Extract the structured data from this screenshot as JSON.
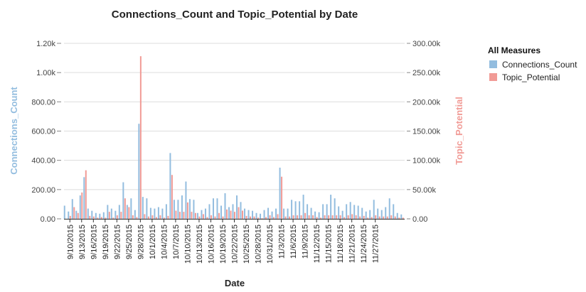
{
  "chart_data": {
    "type": "bar",
    "title": "Connections_Count and Topic_Potential by Date",
    "xlabel": "Date",
    "ylabel_left": "Connections_Count",
    "ylabel_right": "Topic_Potential",
    "ylim_left": [
      0,
      1200
    ],
    "ylim_right": [
      0,
      300000
    ],
    "yticks_left": [
      "0.00",
      "200.00",
      "400.00",
      "600.00",
      "800.00",
      "1.00k",
      "1.20k"
    ],
    "yticks_right": [
      "0.00",
      "50.00k",
      "100.00k",
      "150.00k",
      "200.00k",
      "250.00k",
      "300.00k"
    ],
    "grid": true,
    "legend": {
      "title": "All Measures",
      "position": "top-right"
    },
    "colors": {
      "connections": "#93bddf",
      "topic": "#f19b96"
    },
    "start_date": "2015-09-09",
    "x_tick_labels": [
      "9/10/2015",
      "9/13/2015",
      "9/16/2015",
      "9/19/2015",
      "9/22/2015",
      "9/25/2015",
      "9/28/2015",
      "10/1/2015",
      "10/4/2015",
      "10/7/2015",
      "10/10/2015",
      "10/13/2015",
      "10/16/2015",
      "10/19/2015",
      "10/22/2015",
      "10/25/2015",
      "10/28/2015",
      "10/31/2015",
      "11/3/2015",
      "11/6/2015",
      "11/9/2015",
      "11/12/2015",
      "11/15/2015",
      "11/18/2015",
      "11/21/2015",
      "11/24/2015",
      "11/27/2015"
    ],
    "series": [
      {
        "name": "Connections_Count",
        "values": [
          90,
          50,
          135,
          55,
          160,
          285,
          70,
          55,
          40,
          35,
          45,
          95,
          70,
          55,
          95,
          250,
          95,
          140,
          60,
          650,
          150,
          140,
          75,
          70,
          80,
          70,
          100,
          450,
          130,
          130,
          160,
          255,
          135,
          130,
          40,
          60,
          70,
          100,
          140,
          140,
          90,
          175,
          80,
          100,
          160,
          115,
          70,
          60,
          55,
          40,
          35,
          60,
          75,
          50,
          70,
          350,
          70,
          70,
          130,
          120,
          120,
          165,
          100,
          75,
          50,
          45,
          100,
          100,
          165,
          140,
          85,
          55,
          100,
          115,
          95,
          90,
          75,
          50,
          60,
          130,
          70,
          60,
          80,
          140,
          100,
          40,
          30
        ]
      },
      {
        "name": "Topic_Potential",
        "values": [
          0,
          5000,
          20000,
          10000,
          45000,
          83000,
          5000,
          4000,
          2000,
          3000,
          2000,
          12000,
          2000,
          6000,
          12000,
          35000,
          20000,
          6000,
          3000,
          278000,
          8000,
          4000,
          6000,
          3000,
          6000,
          2000,
          5000,
          75000,
          14000,
          12000,
          12000,
          28000,
          12000,
          10000,
          4000,
          8000,
          3000,
          6000,
          4000,
          10000,
          4000,
          16000,
          14000,
          12000,
          20000,
          14000,
          5000,
          4000,
          4000,
          2000,
          1000,
          3000,
          6000,
          3000,
          8000,
          72000,
          4000,
          4000,
          6000,
          6000,
          6000,
          10000,
          6000,
          6000,
          3000,
          2000,
          6000,
          6000,
          6000,
          6000,
          6000,
          3000,
          6000,
          8000,
          6000,
          4000,
          5000,
          2000,
          3000,
          6000,
          4000,
          4000,
          4000,
          6000,
          4000,
          2000,
          2000
        ]
      }
    ]
  }
}
